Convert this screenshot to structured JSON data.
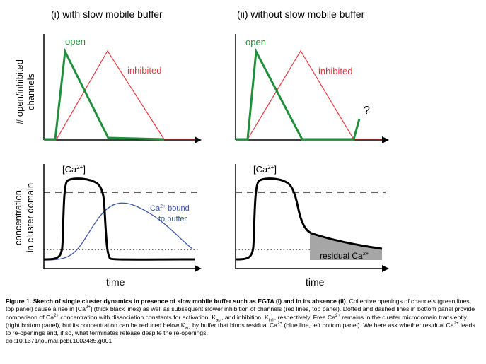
{
  "figure": {
    "panel_titles": [
      "(i) with slow mobile buffer",
      "(ii) without slow mobile buffer"
    ],
    "top": {
      "ylabel_line1": "# open/inhibited",
      "ylabel_line2": "channels",
      "open_label": "open",
      "inhibited_label": "inhibited",
      "question_mark": "?"
    },
    "bottom": {
      "ylabel_line1": "concentration",
      "ylabel_line2": "in cluster domain",
      "ca_label": "[Ca",
      "ca_sup": "2+",
      "ca_close": "]",
      "bound_label_1a": "Ca",
      "bound_label_1sup": "2+",
      "bound_label_1b": " bound",
      "bound_label_2": "to buffer",
      "residual_label": "residual Ca",
      "residual_sup": "2+"
    },
    "xlabel": "time",
    "colors": {
      "open": "#1f8f3a",
      "inhibited": "#e0393e",
      "bound": "#3b55a6",
      "concentration": "#000000",
      "residual_fill": "#a6a6a6"
    }
  },
  "caption": {
    "title": "Figure 1. Sketch of single cluster dynamics in presence of slow mobile buffer such as EGTA (i) and in its absence (ii).",
    "s1": " Collective openings of channels (green lines, top panel) cause a rise in [Ca",
    "s2": "] (thick black lines) as well as subsequent slower inhibition of channels (red lines, top panel). Dotted and dashed lines in bottom panel provide comparison of Ca",
    "s3": " concentration with dissociation constants for activation, K",
    "sub_act": "act",
    "s4": ", and inhibition, K",
    "sub_inh": "inh",
    "s5": ", respectively. Free Ca",
    "s6": " remains in the cluster microdomain transiently (right bottom panel), but its concentration can be reduced below K",
    "s7": " by buffer that binds residual Ca",
    "s8": " (blue line, left bottom panel). We here ask whether residual Ca",
    "s9": " leads to re-openings and, if so, what terminates release despite the re-openings.",
    "sup": "2+",
    "doi": "doi:10.1371/journal.pcbi.1002485.g001"
  }
}
